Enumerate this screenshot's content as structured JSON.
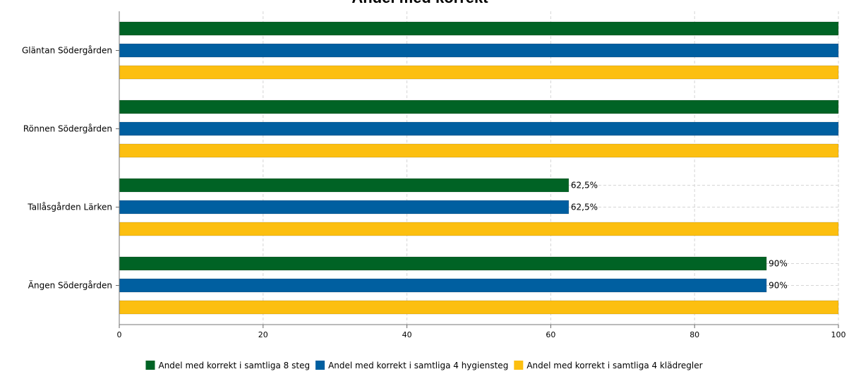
{
  "chart_data": {
    "type": "bar",
    "orientation": "horizontal",
    "title": "Andel med korrekt",
    "xlabel": "",
    "ylabel": "",
    "xlim": [
      0,
      100
    ],
    "xticks": [
      "0",
      "20",
      "40",
      "60",
      "80",
      "100"
    ],
    "grid": true,
    "legend_position": "bottom",
    "categories": [
      "Gläntan Södergården",
      "Rönnen Södergården",
      "Tallåsgården Lärken",
      "Ängen Södergården"
    ],
    "series": [
      {
        "name": "Andel med korrekt i samtliga 8 steg",
        "color": "#006325",
        "values": [
          100,
          100,
          62.5,
          90
        ],
        "labels": [
          "",
          "",
          "62,5%",
          "90%"
        ]
      },
      {
        "name": "Andel med korrekt i samtliga 4 hygiensteg",
        "color": "#005fa0",
        "values": [
          100,
          100,
          62.5,
          90
        ],
        "labels": [
          "",
          "",
          "62,5%",
          "90%"
        ]
      },
      {
        "name": "Andel med korrekt i samtliga 4 klädregler",
        "color": "#fcbf10",
        "values": [
          100,
          100,
          100,
          100
        ],
        "labels": [
          "",
          "",
          "",
          ""
        ]
      }
    ]
  }
}
